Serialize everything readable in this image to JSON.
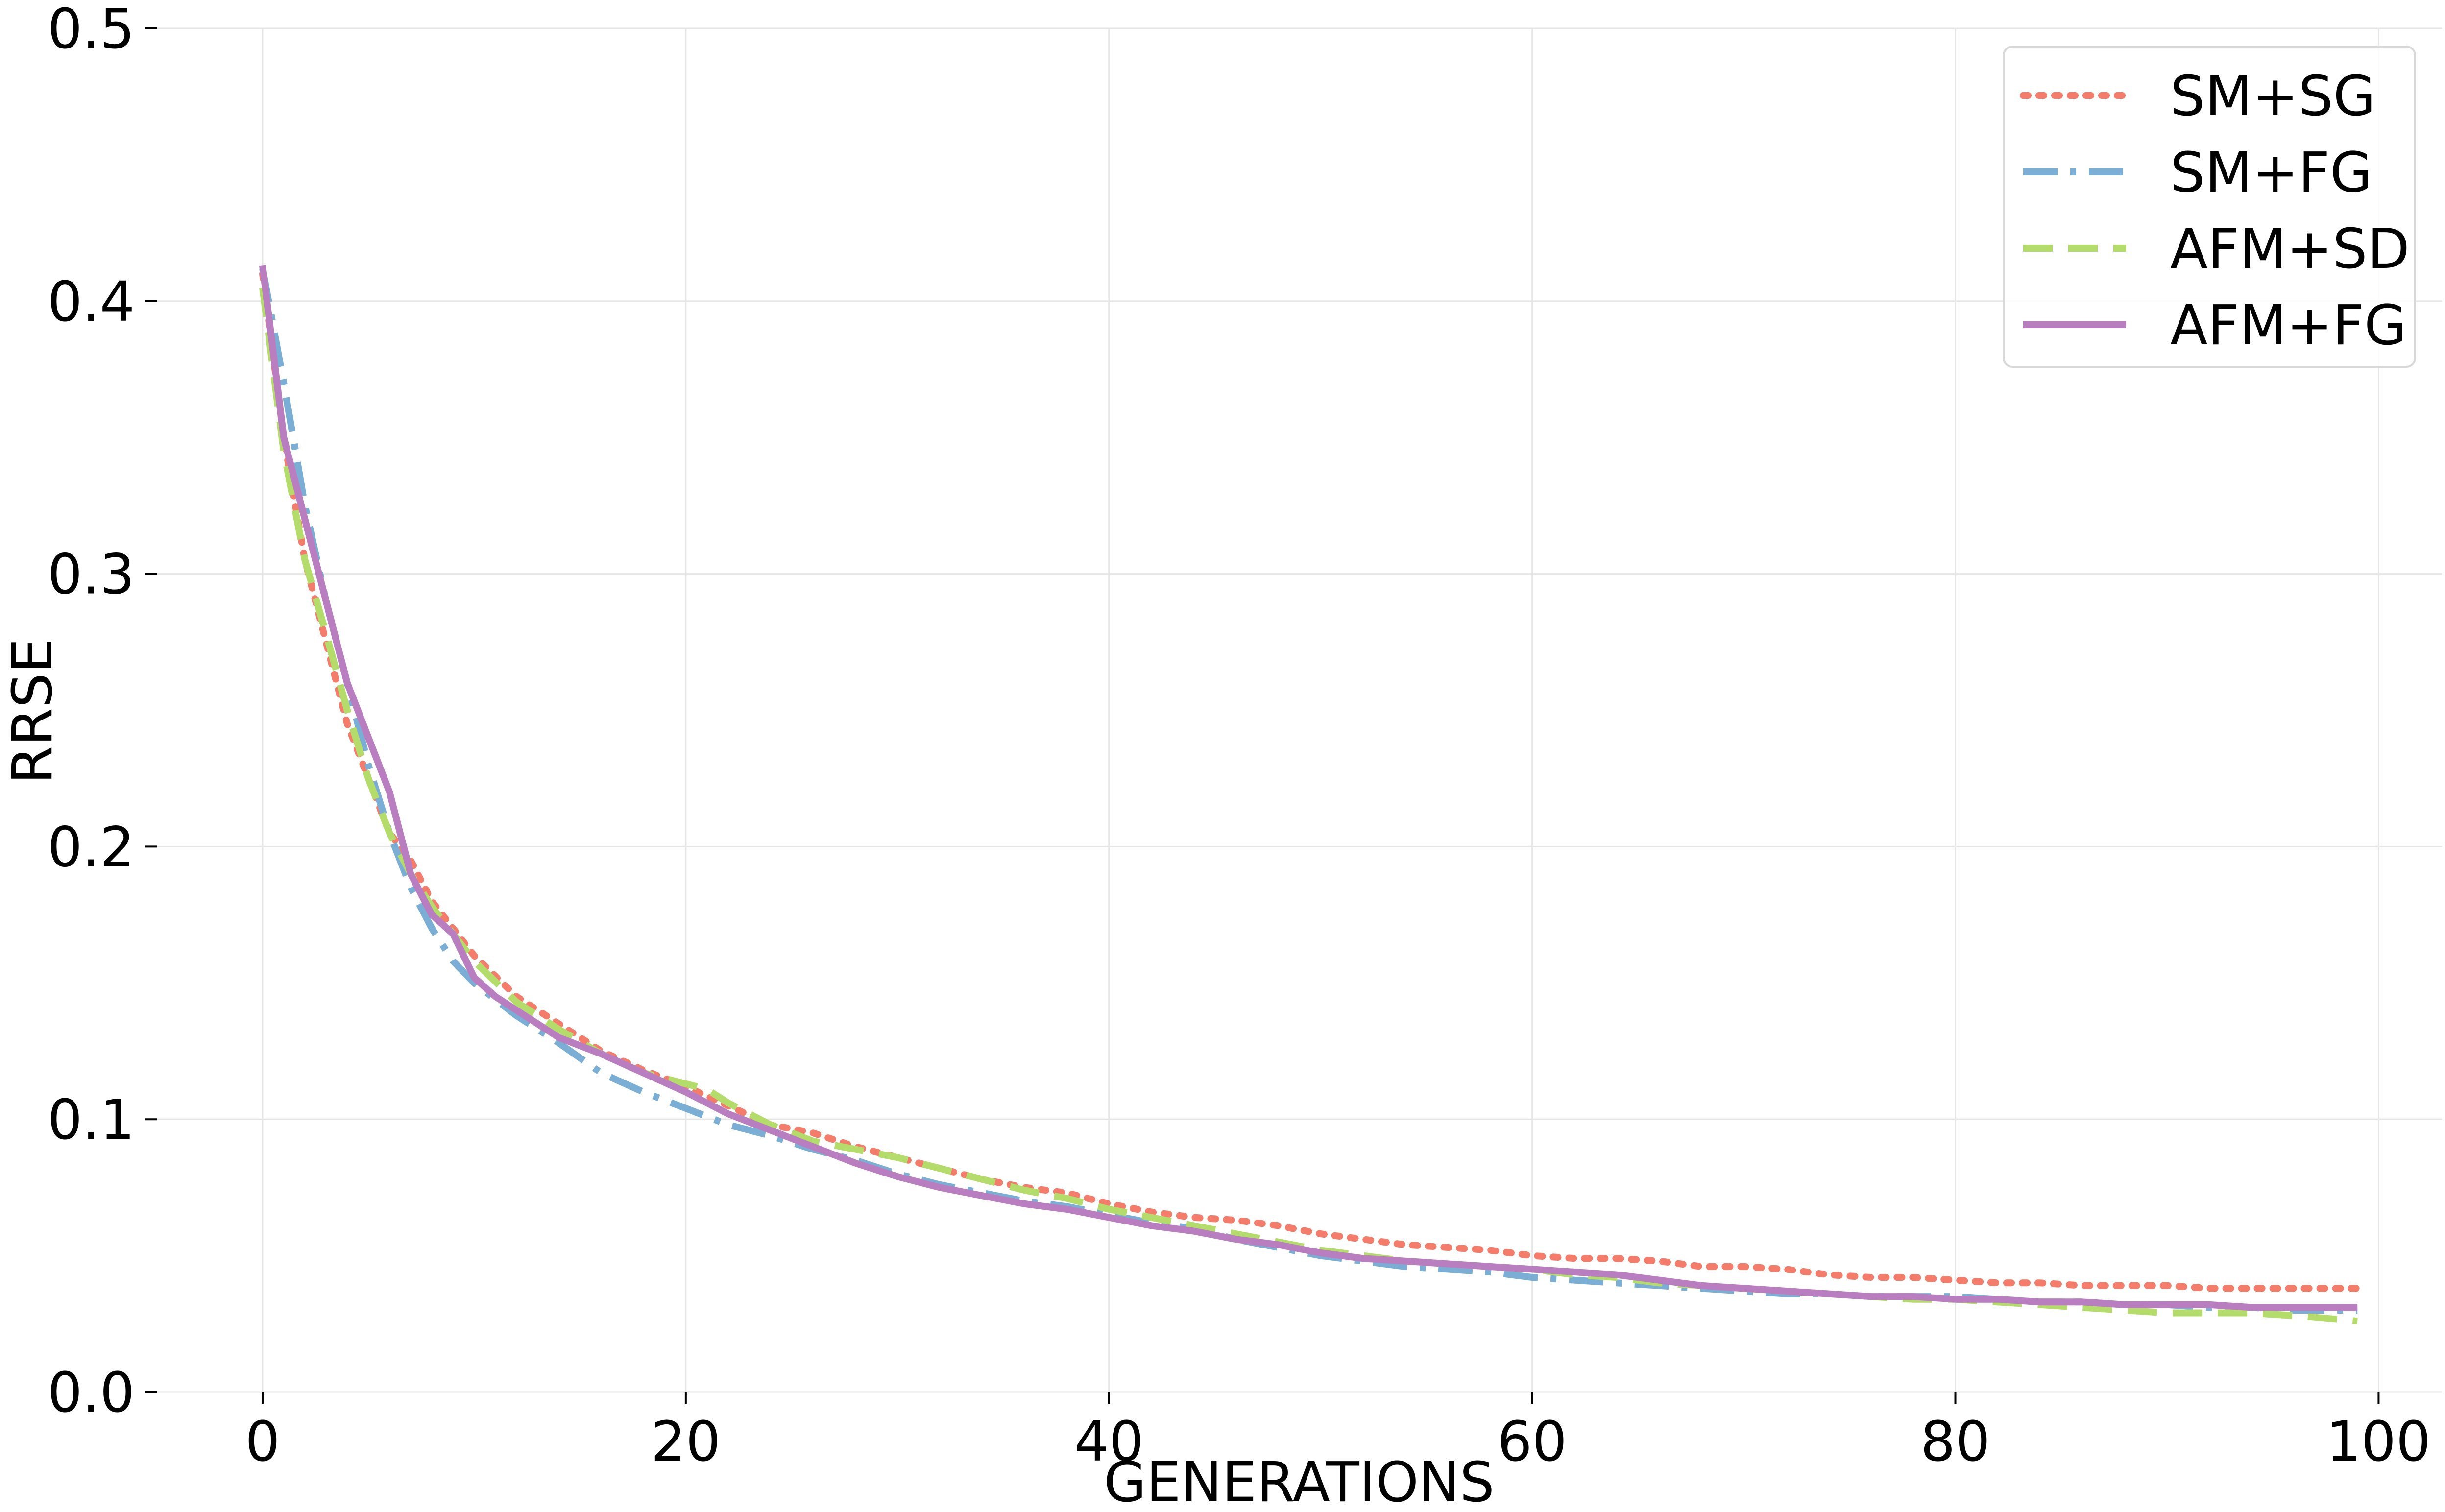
{
  "chart_data": {
    "type": "line",
    "xlabel": "GENERATIONS",
    "ylabel": "RRSE",
    "xlim": [
      -5,
      103
    ],
    "ylim": [
      0.0,
      0.5
    ],
    "xticks": [
      0,
      20,
      40,
      60,
      80,
      100
    ],
    "yticks": [
      0.0,
      0.1,
      0.2,
      0.3,
      0.4,
      0.5
    ],
    "xtick_labels": [
      "0",
      "20",
      "40",
      "60",
      "80",
      "100"
    ],
    "ytick_labels": [
      "0.0",
      "0.1",
      "0.2",
      "0.3",
      "0.4",
      "0.5"
    ],
    "grid": true,
    "legend_position": "top-right",
    "series": [
      {
        "name": "SM+SG",
        "color": "#f47c6b",
        "style": "dotted",
        "x": [
          0,
          1,
          2,
          3,
          4,
          5,
          6,
          7,
          8,
          9,
          10,
          12,
          14,
          16,
          18,
          20,
          22,
          24,
          26,
          28,
          30,
          32,
          34,
          36,
          38,
          40,
          42,
          44,
          46,
          48,
          50,
          52,
          54,
          56,
          58,
          60,
          62,
          64,
          66,
          68,
          70,
          72,
          74,
          76,
          78,
          80,
          82,
          84,
          86,
          88,
          90,
          92,
          94,
          96,
          99
        ],
        "y": [
          0.41,
          0.35,
          0.305,
          0.275,
          0.245,
          0.225,
          0.205,
          0.195,
          0.18,
          0.17,
          0.16,
          0.145,
          0.135,
          0.125,
          0.118,
          0.112,
          0.105,
          0.098,
          0.095,
          0.09,
          0.086,
          0.082,
          0.078,
          0.075,
          0.073,
          0.069,
          0.066,
          0.064,
          0.063,
          0.061,
          0.058,
          0.056,
          0.054,
          0.053,
          0.052,
          0.05,
          0.049,
          0.049,
          0.048,
          0.046,
          0.046,
          0.045,
          0.043,
          0.042,
          0.042,
          0.041,
          0.04,
          0.04,
          0.039,
          0.039,
          0.039,
          0.038,
          0.038,
          0.038,
          0.038
        ]
      },
      {
        "name": "SM+FG",
        "color": "#7aaed4",
        "style": "dashdot",
        "x": [
          0,
          1,
          2,
          3,
          4,
          5,
          6,
          7,
          8,
          9,
          10,
          12,
          14,
          16,
          18,
          20,
          22,
          24,
          26,
          28,
          30,
          32,
          34,
          36,
          38,
          40,
          42,
          44,
          46,
          48,
          50,
          52,
          54,
          56,
          58,
          60,
          62,
          64,
          66,
          68,
          70,
          72,
          74,
          76,
          78,
          80,
          82,
          84,
          86,
          88,
          90,
          92,
          94,
          96,
          99
        ],
        "y": [
          0.412,
          0.37,
          0.325,
          0.29,
          0.26,
          0.23,
          0.205,
          0.185,
          0.17,
          0.158,
          0.15,
          0.138,
          0.128,
          0.117,
          0.11,
          0.104,
          0.098,
          0.094,
          0.089,
          0.085,
          0.08,
          0.076,
          0.073,
          0.07,
          0.068,
          0.065,
          0.062,
          0.06,
          0.056,
          0.053,
          0.05,
          0.048,
          0.046,
          0.045,
          0.044,
          0.042,
          0.041,
          0.04,
          0.039,
          0.038,
          0.037,
          0.036,
          0.036,
          0.035,
          0.035,
          0.035,
          0.034,
          0.033,
          0.033,
          0.032,
          0.032,
          0.031,
          0.031,
          0.03,
          0.03
        ]
      },
      {
        "name": "AFM+SD",
        "color": "#b3dc6b",
        "style": "dashed",
        "x": [
          0,
          1,
          2,
          3,
          4,
          5,
          6,
          7,
          8,
          9,
          10,
          12,
          14,
          16,
          18,
          20,
          21,
          22,
          24,
          26,
          28,
          30,
          32,
          34,
          36,
          38,
          40,
          42,
          44,
          46,
          48,
          50,
          52,
          54,
          56,
          58,
          60,
          62,
          64,
          66,
          68,
          70,
          72,
          74,
          76,
          78,
          80,
          82,
          84,
          86,
          88,
          90,
          92,
          94,
          96,
          99
        ],
        "y": [
          0.405,
          0.345,
          0.305,
          0.278,
          0.25,
          0.225,
          0.205,
          0.19,
          0.178,
          0.168,
          0.158,
          0.143,
          0.133,
          0.124,
          0.117,
          0.113,
          0.111,
          0.106,
          0.098,
          0.092,
          0.089,
          0.086,
          0.082,
          0.078,
          0.074,
          0.071,
          0.067,
          0.064,
          0.061,
          0.058,
          0.055,
          0.052,
          0.05,
          0.048,
          0.047,
          0.046,
          0.045,
          0.043,
          0.042,
          0.04,
          0.039,
          0.038,
          0.037,
          0.036,
          0.035,
          0.034,
          0.034,
          0.033,
          0.032,
          0.031,
          0.03,
          0.029,
          0.029,
          0.029,
          0.028,
          0.026
        ]
      },
      {
        "name": "AFM+FG",
        "color": "#b97ec0",
        "style": "solid",
        "x": [
          0,
          1,
          2,
          3,
          4,
          5,
          6,
          7,
          8,
          9,
          10,
          11,
          12,
          14,
          16,
          18,
          20,
          22,
          24,
          26,
          28,
          30,
          32,
          34,
          36,
          38,
          40,
          42,
          44,
          46,
          48,
          50,
          52,
          54,
          56,
          58,
          60,
          62,
          64,
          66,
          68,
          70,
          72,
          74,
          76,
          78,
          80,
          82,
          84,
          86,
          88,
          90,
          92,
          94,
          96,
          99
        ],
        "y": [
          0.413,
          0.35,
          0.32,
          0.29,
          0.26,
          0.24,
          0.22,
          0.19,
          0.175,
          0.168,
          0.152,
          0.145,
          0.14,
          0.13,
          0.124,
          0.117,
          0.11,
          0.102,
          0.096,
          0.09,
          0.084,
          0.079,
          0.075,
          0.072,
          0.069,
          0.067,
          0.064,
          0.061,
          0.059,
          0.056,
          0.054,
          0.051,
          0.049,
          0.048,
          0.047,
          0.046,
          0.045,
          0.044,
          0.043,
          0.041,
          0.039,
          0.038,
          0.037,
          0.036,
          0.035,
          0.035,
          0.034,
          0.034,
          0.033,
          0.033,
          0.032,
          0.032,
          0.032,
          0.031,
          0.031,
          0.031
        ]
      }
    ]
  }
}
